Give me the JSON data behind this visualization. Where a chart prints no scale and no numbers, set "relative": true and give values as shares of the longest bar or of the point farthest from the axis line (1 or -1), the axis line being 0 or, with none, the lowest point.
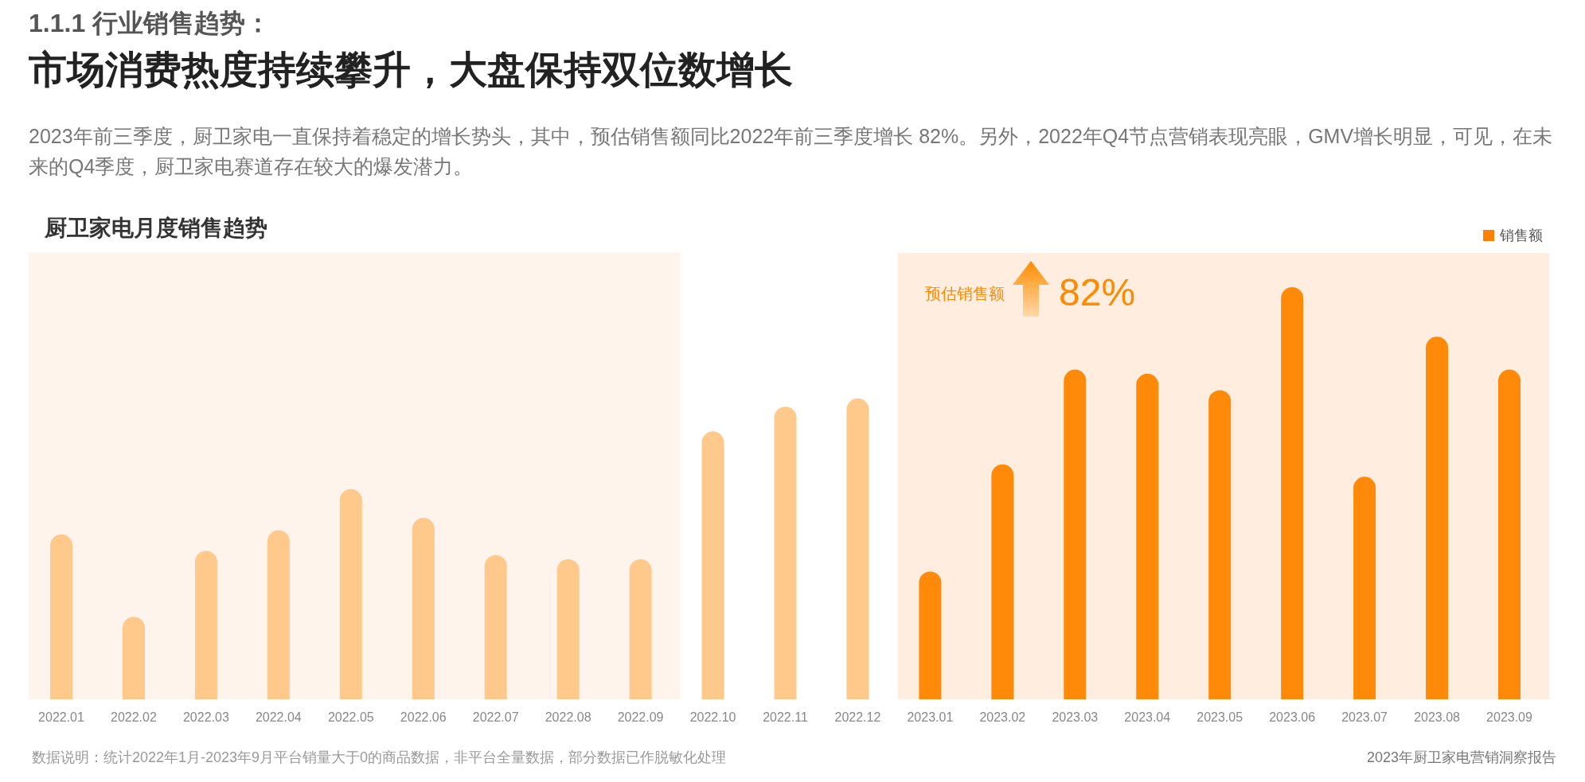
{
  "chart_data": {
    "type": "bar",
    "title": "1.1.1 行业销售趋势：",
    "subtitle": "市场消费热度持续攀升，大盘保持双位数增长",
    "relative": true,
    "categories": [
      "2022.01",
      "2022.02",
      "2022.03",
      "2022.04",
      "2022.05",
      "2022.06",
      "2022.07",
      "2022.08",
      "2022.09",
      "2022.10",
      "2022.11",
      "2022.12",
      "2023.01",
      "2023.02",
      "2023.03",
      "2023.04",
      "2023.05",
      "2023.06",
      "2023.07",
      "2023.08",
      "2023.09"
    ],
    "series": [
      {
        "name": "销售额",
        "color": "#ff7f00",
        "values": [
          0.4,
          0.2,
          0.36,
          0.41,
          0.51,
          0.44,
          0.35,
          0.34,
          0.34,
          0.65,
          0.71,
          0.73,
          0.31,
          0.57,
          0.8,
          0.79,
          0.75,
          1,
          0.54,
          0.88,
          0.8
        ],
        "colors": [
          "#fec98a",
          "#fec98a",
          "#fec98a",
          "#fec98a",
          "#fec98a",
          "#fec98a",
          "#fec98a",
          "#fec98a",
          "#fec98a",
          "#fec98a",
          "#fec98a",
          "#fec98a",
          "#ff8a0a",
          "#ff8a0a",
          "#ff8a0a",
          "#ff8a0a",
          "#ff8a0a",
          "#ff8a0a",
          "#ff8a0a",
          "#ff8a0a",
          "#ff8a0a"
        ]
      }
    ],
    "bands": [
      {
        "axis": "x",
        "from": "2022.01",
        "to": "2022.09",
        "color": "#fff4ec"
      },
      {
        "axis": "x",
        "from": "2023.01",
        "to": "2023.09",
        "color": "#ffeedf"
      }
    ],
    "legend": "top right",
    "annotations": [
      "2023年前三季度，厨卫家电一直保持着稳定的增长势头，其中，预估销售额同比2022年前三季度增长 82%。另外，2022年Q4节点营销表现亮眼，GMV增长明显，可见，在未来的Q4季度，厨卫家电赛道存在较大的爆发潜力。",
      "厨卫家电月度销售趋势",
      "预估销售额",
      "82%",
      "数据说明：统计2022年1月-2023年9月平台销量大于0的商品数据，非平台全量数据，部分数据已作脱敏化处理",
      "2023年厨卫家电营销洞察报告"
    ]
  }
}
